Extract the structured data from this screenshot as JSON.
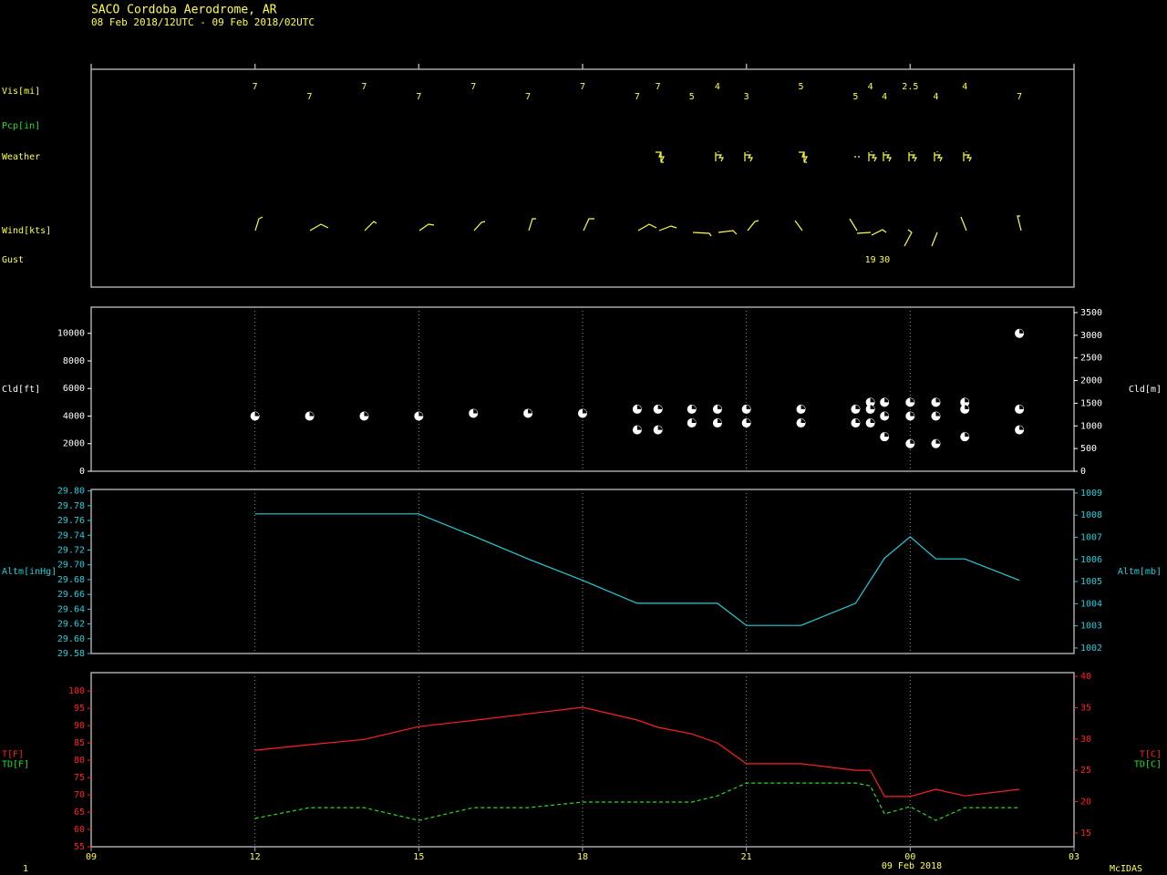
{
  "header": {
    "title": "SACO  Cordoba Aerodrome,  AR",
    "subtitle": "08 Feb 2018/12UTC - 09 Feb 2018/02UTC"
  },
  "footer": {
    "frame": "1",
    "software": "McIDAS",
    "date_label": "09 Feb 2018"
  },
  "chart_data": [
    {
      "type": "station",
      "rows": [
        "Vis[mi]",
        "Pcp[in]",
        "Weather",
        "Wind[kts]",
        "Gust"
      ],
      "x": [
        12,
        13,
        14,
        15,
        16,
        17,
        18,
        19,
        19.38,
        20,
        20.47,
        21,
        22,
        23,
        23.27,
        23.53,
        24,
        24.47,
        25,
        26
      ],
      "vis": [
        7,
        7,
        7,
        7,
        7,
        7,
        7,
        7,
        7,
        5,
        4,
        3,
        5,
        5,
        4,
        4,
        2.5,
        4,
        4,
        7
      ],
      "gust": [
        null,
        null,
        null,
        null,
        null,
        null,
        null,
        null,
        null,
        null,
        null,
        null,
        null,
        null,
        19,
        30,
        null,
        null,
        null,
        null
      ],
      "xlim": [
        9,
        27
      ],
      "xticks": [
        9,
        12,
        15,
        18,
        21,
        24,
        27
      ],
      "color": "#ffff40"
    },
    {
      "type": "scatter",
      "ylabel": "Cld[ft]",
      "y2label": "Cld[m]",
      "x": [
        12,
        13,
        14,
        15,
        16,
        17,
        18,
        19,
        19.38,
        20,
        20.47,
        21,
        22,
        23,
        23.27,
        23.53,
        24,
        24.47,
        25,
        26
      ],
      "series": [
        {
          "color": "#ffffff",
          "values": [
            null,
            null,
            null,
            null,
            null,
            null,
            null,
            4500,
            4500,
            4500,
            4500,
            4500,
            4500,
            4500,
            5000,
            5000,
            5000,
            5000,
            5000,
            10000
          ]
        },
        {
          "color": "#ffffff",
          "values": [
            4000,
            4000,
            4000,
            4000,
            4200,
            4200,
            4200,
            3000,
            3000,
            3500,
            3500,
            3500,
            3500,
            3500,
            4500,
            4000,
            4000,
            4000,
            4500,
            4500
          ]
        },
        {
          "color": "#ffffff",
          "values": [
            null,
            null,
            null,
            null,
            null,
            null,
            null,
            null,
            null,
            null,
            null,
            null,
            null,
            null,
            3500,
            2500,
            2000,
            2000,
            2500,
            3000
          ]
        }
      ],
      "xlim": [
        9,
        27
      ],
      "xticks": [
        12,
        15,
        18,
        21,
        24
      ],
      "grid": true,
      "ylim": [
        0,
        11900
      ],
      "yticks": [
        0,
        2000,
        4000,
        6000,
        8000,
        10000
      ],
      "y2lim": [
        0,
        3620
      ],
      "y2ticks": [
        0,
        500,
        1000,
        1500,
        2000,
        2500,
        3000,
        3500
      ],
      "axis_color": "#ffffff"
    },
    {
      "type": "line",
      "ylabel": "Altm[inHg]",
      "y2label": "Altm[mb]",
      "x": [
        12,
        13,
        14,
        15,
        16,
        17,
        18,
        19,
        19.38,
        20,
        20.47,
        21,
        22,
        23,
        23.27,
        23.53,
        24,
        24.47,
        25,
        26
      ],
      "series": [
        {
          "color": "#20d0d8",
          "values": [
            29.769,
            29.769,
            29.769,
            29.769,
            29.739,
            29.708,
            29.679,
            29.648,
            29.648,
            29.648,
            29.648,
            29.618,
            29.618,
            29.648,
            29.679,
            29.709,
            29.738,
            29.708,
            29.708,
            29.679
          ]
        }
      ],
      "xlim": [
        9,
        27
      ],
      "xticks": [
        12,
        15,
        18,
        21,
        24
      ],
      "grid": true,
      "ylim": [
        29.58,
        29.802
      ],
      "yticks": [
        29.58,
        {
          "value": 29.6,
          "label": "29.60"
        },
        29.62,
        29.64,
        29.66,
        29.68,
        {
          "value": 29.7,
          "label": "29.70"
        },
        29.72,
        29.74,
        29.76,
        29.78,
        {
          "value": 29.8,
          "label": "29.80"
        }
      ],
      "y2lim": [
        1001.75,
        1009.16
      ],
      "y2ticks": [
        1002,
        1003,
        1004,
        1005,
        1006,
        1007,
        1008,
        1009
      ],
      "axis_color": "#20d0d8"
    },
    {
      "type": "line",
      "x": [
        12,
        13,
        14,
        15,
        16,
        17,
        18,
        19,
        19.38,
        20,
        20.47,
        21,
        22,
        23,
        23.27,
        23.53,
        24,
        24.47,
        25,
        26
      ],
      "series": [
        {
          "name": "T[F]",
          "color": "#ff2020",
          "dash": false,
          "values": [
            82.9,
            84.5,
            86,
            89.7,
            91.5,
            93.4,
            95.3,
            91.6,
            89.5,
            87.6,
            85,
            79,
            79,
            77.1,
            77.1,
            69.5,
            69.5,
            71.6,
            69.7,
            71.6
          ]
        },
        {
          "name": "TD[F]",
          "color": "#20e020",
          "dash": true,
          "values": [
            63.2,
            66.3,
            66.3,
            62.6,
            66.3,
            66.3,
            67.9,
            67.9,
            67.9,
            67.9,
            69.7,
            73.4,
            73.4,
            73.4,
            72.6,
            64.5,
            66.6,
            62.6,
            66.3,
            66.3
          ]
        }
      ],
      "y2label": [
        "T[C]",
        "TD[C]"
      ],
      "xlim": [
        9,
        27
      ],
      "xticks": [
        {
          "value": 9,
          "label": "09"
        },
        12,
        15,
        18,
        21,
        {
          "value": 24,
          "label": "00"
        },
        {
          "value": 27,
          "label": "03"
        }
      ],
      "grid": true,
      "ylim": [
        55,
        105.3
      ],
      "yticks": [
        55,
        60,
        65,
        70,
        75,
        80,
        85,
        90,
        95,
        100
      ],
      "y2lim": [
        12.8,
        40.6
      ],
      "y2ticks": [
        15,
        20,
        25,
        30,
        35,
        40
      ],
      "axis_color": "#ff2020"
    }
  ]
}
